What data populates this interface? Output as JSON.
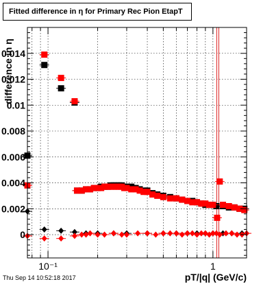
{
  "title": "Fitted difference in  η for Primary Rec Pion EtapT",
  "timestamp": "Thu Sep 14 10:52:18 2017",
  "chart_data": {
    "type": "scatter",
    "title": "Fitted difference in  η for Primary Rec Pion EtapT",
    "xlabel": "pT/|q| (GeV/c)",
    "ylabel": "difference in  η",
    "xscale": "log",
    "xlim": [
      0.075,
      1.6
    ],
    "ylim": [
      -0.0018,
      0.016
    ],
    "grid": true,
    "ytick_values": [
      0,
      0.002,
      0.004,
      0.006,
      0.008,
      0.01,
      0.012,
      0.014
    ],
    "ytick_labels": [
      "0",
      "0.002",
      "0.004",
      "0.006",
      "0.008",
      "0.01",
      "0.012",
      "0.014"
    ],
    "xtick_values": [
      0.1,
      1
    ],
    "xtick_labels": [
      "10⁻¹",
      "1"
    ],
    "vertical_line": {
      "x": 1.07,
      "color": "#dd2222"
    },
    "series": [
      {
        "marker": "square",
        "color": "#000000",
        "x": [
          0.075,
          0.095,
          0.12,
          0.145,
          0.15,
          0.16,
          0.17,
          0.18,
          0.19,
          0.2,
          0.21,
          0.22,
          0.23,
          0.24,
          0.25,
          0.26,
          0.27,
          0.28,
          0.29,
          0.3,
          0.32,
          0.34,
          0.36,
          0.38,
          0.4,
          0.43,
          0.46,
          0.5,
          0.55,
          0.6,
          0.65,
          0.7,
          0.75,
          0.8,
          0.85,
          0.9,
          0.95,
          1.0,
          1.05,
          1.15,
          1.25,
          1.35,
          1.45,
          1.55
        ],
        "values": [
          0.0061,
          0.0131,
          0.0113,
          0.0102,
          0.0034,
          0.0034,
          0.0035,
          0.0035,
          0.0036,
          0.0036,
          0.0037,
          0.0037,
          0.0037,
          0.0038,
          0.0038,
          0.0038,
          0.0038,
          0.0038,
          0.0037,
          0.0037,
          0.0037,
          0.0036,
          0.0035,
          0.0034,
          0.0034,
          0.0032,
          0.0031,
          0.003,
          0.0029,
          0.0028,
          0.0027,
          0.0026,
          0.0026,
          0.0025,
          0.0024,
          0.0023,
          0.0023,
          0.0023,
          0.0022,
          0.0022,
          0.0021,
          0.0021,
          0.002,
          0.002
        ]
      },
      {
        "marker": "square",
        "color": "#ff0000",
        "x": [
          0.075,
          0.095,
          0.12,
          0.145,
          0.15,
          0.16,
          0.17,
          0.18,
          0.19,
          0.2,
          0.21,
          0.22,
          0.23,
          0.24,
          0.25,
          0.26,
          0.27,
          0.28,
          0.29,
          0.3,
          0.32,
          0.34,
          0.36,
          0.38,
          0.4,
          0.43,
          0.46,
          0.5,
          0.55,
          0.6,
          0.65,
          0.7,
          0.75,
          0.8,
          0.85,
          0.9,
          0.95,
          1.0,
          1.06,
          1.1,
          1.15,
          1.25,
          1.35,
          1.45,
          1.55
        ],
        "values": [
          0.0038,
          0.0139,
          0.0121,
          0.0103,
          0.0034,
          0.0034,
          0.0035,
          0.0035,
          0.0036,
          0.0036,
          0.0036,
          0.0037,
          0.0037,
          0.0037,
          0.0037,
          0.0037,
          0.0037,
          0.0037,
          0.0036,
          0.0036,
          0.0035,
          0.0035,
          0.0034,
          0.0033,
          0.0033,
          0.0031,
          0.003,
          0.0029,
          0.0028,
          0.0028,
          0.0027,
          0.0026,
          0.0025,
          0.0025,
          0.0024,
          0.0024,
          0.0023,
          0.0023,
          0.0013,
          0.0041,
          0.0023,
          0.0022,
          0.0021,
          0.002,
          0.0019
        ]
      },
      {
        "marker": "diamond",
        "color": "#000000",
        "x": [
          0.075,
          0.095,
          0.12,
          0.145,
          0.17,
          0.2,
          0.25,
          0.3,
          0.4,
          0.5,
          0.6,
          0.7,
          0.8,
          0.9,
          1.0,
          1.15,
          1.3,
          1.5
        ],
        "values": [
          0.0018,
          0.0004,
          0.0003,
          0.0002,
          0.0001,
          0.0001,
          0.0001,
          0.0001,
          0.0001,
          0.0001,
          0.0001,
          0.0001,
          0.0001,
          0.0001,
          0.0001,
          0.0001,
          0.0001,
          0.0001
        ]
      },
      {
        "marker": "diamond",
        "color": "#ff0000",
        "x": [
          0.075,
          0.095,
          0.12,
          0.145,
          0.16,
          0.17,
          0.18,
          0.2,
          0.22,
          0.25,
          0.28,
          0.3,
          0.35,
          0.4,
          0.45,
          0.5,
          0.55,
          0.6,
          0.65,
          0.7,
          0.75,
          0.8,
          0.85,
          0.9,
          0.95,
          1.0,
          1.05,
          1.1,
          1.2,
          1.3,
          1.4,
          1.5,
          1.6
        ],
        "values": [
          -0.0001,
          -0.0003,
          -0.0003,
          -0.0001,
          0.0,
          0.0,
          0.0001,
          0.0,
          0.0,
          0.0001,
          0.0,
          0.0,
          0.0001,
          0.0001,
          0.0,
          0.0001,
          0.0001,
          0.0001,
          0.0,
          0.0001,
          0.0001,
          0.0,
          0.0001,
          0.0001,
          0.0,
          0.0001,
          0.0001,
          0.0,
          0.0001,
          0.0001,
          0.0,
          0.0,
          0.0001
        ]
      }
    ]
  }
}
